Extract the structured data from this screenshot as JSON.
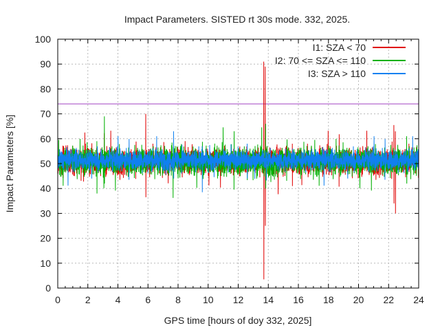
{
  "chart_data": {
    "type": "line",
    "title": "Impact Parameters. SISTED rt 30s mode. 332, 2025.",
    "xlabel": "GPS time [hours of doy 332, 2025]",
    "ylabel": "Impact Parameters [%]",
    "xlim": [
      0,
      24
    ],
    "ylim": [
      0,
      100
    ],
    "xticks": [
      0,
      2,
      4,
      6,
      8,
      10,
      12,
      14,
      16,
      18,
      20,
      22,
      24
    ],
    "yticks": [
      0,
      10,
      20,
      30,
      40,
      50,
      60,
      70,
      80,
      90,
      100
    ],
    "grid": true,
    "legend_position": "top-right",
    "threshold": {
      "value": 74,
      "color": "#a040c0"
    },
    "series": [
      {
        "name": "I1: SZA < 70",
        "color": "#e00000",
        "base": 51,
        "spread": 4.5,
        "spikes": [
          {
            "x": 1.8,
            "values": [
              62.5,
              46
            ]
          },
          {
            "x": 5.85,
            "values": [
              70,
              36.5
            ]
          },
          {
            "x": 13.7,
            "values": [
              91,
              3.5
            ]
          },
          {
            "x": 13.8,
            "values": [
              89,
              25
            ]
          },
          {
            "x": 15.6,
            "values": [
              58,
              41
            ]
          },
          {
            "x": 22.35,
            "values": [
              65.5,
              34
            ]
          },
          {
            "x": 22.45,
            "values": [
              63,
              30
            ]
          }
        ]
      },
      {
        "name": "I2: 70 <= SZA <= 110",
        "color": "#00b000",
        "base": 51,
        "spread": 5,
        "spikes": [
          {
            "x": 3.1,
            "values": [
              69,
              42
            ]
          },
          {
            "x": 2.6,
            "values": [
              59,
              38
            ]
          },
          {
            "x": 13.82,
            "values": [
              66,
              40
            ]
          },
          {
            "x": 23.2,
            "values": [
              61,
              42
            ]
          }
        ]
      },
      {
        "name": "I3: SZA > 110",
        "color": "#1080f0",
        "base": 51.5,
        "spread": 3.5,
        "spikes": [
          {
            "x": 7.7,
            "values": [
              63,
              44
            ]
          },
          {
            "x": 9.6,
            "values": [
              57,
              38.5
            ]
          },
          {
            "x": 12.6,
            "values": [
              58,
              44
            ]
          }
        ]
      }
    ]
  }
}
